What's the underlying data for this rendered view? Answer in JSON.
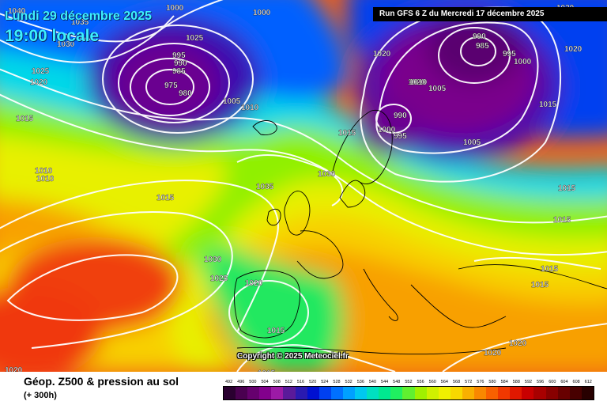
{
  "header": {
    "date_line": "Lundi 29 décembre 2025",
    "time_line": "19:00 locale",
    "run_label": "Run GFS 6 Z du Mercredi 17 décembre 2025"
  },
  "map": {
    "copyright": "Copyright © 2025 Meteociel.fr",
    "pressure_labels": [
      {
        "t": "1040"
      },
      {
        "t": "1035"
      },
      {
        "t": "1030"
      },
      {
        "t": "1025"
      },
      {
        "t": "1020"
      },
      {
        "t": "1000"
      },
      {
        "t": "995"
      },
      {
        "t": "990"
      },
      {
        "t": "985"
      },
      {
        "t": "975"
      },
      {
        "t": "980"
      },
      {
        "t": "1005"
      },
      {
        "t": "1010"
      },
      {
        "t": "1025"
      },
      {
        "t": "1000"
      },
      {
        "t": "1010"
      },
      {
        "t": "1010"
      },
      {
        "t": "1015"
      },
      {
        "t": "1035"
      },
      {
        "t": "1030"
      },
      {
        "t": "1015"
      },
      {
        "t": "1030"
      },
      {
        "t": "1025"
      },
      {
        "t": "1020"
      },
      {
        "t": "1015"
      },
      {
        "t": "1015"
      },
      {
        "t": "1020"
      },
      {
        "t": "1020"
      },
      {
        "t": "1020"
      },
      {
        "t": "1010"
      },
      {
        "t": "1005"
      },
      {
        "t": "990"
      },
      {
        "t": "985"
      },
      {
        "t": "995"
      },
      {
        "t": "1000"
      },
      {
        "t": "990"
      },
      {
        "t": "1000"
      },
      {
        "t": "995"
      },
      {
        "t": "1005"
      },
      {
        "t": "1020"
      },
      {
        "t": "1015"
      },
      {
        "t": "1030"
      },
      {
        "t": "1015"
      },
      {
        "t": "1015"
      },
      {
        "t": "1015"
      },
      {
        "t": "1015"
      },
      {
        "t": "1020"
      },
      {
        "t": "1020"
      },
      {
        "t": "1020"
      },
      {
        "t": "1015"
      }
    ]
  },
  "footer": {
    "product_title": "Géop. Z500 & pression au sol",
    "lead_time": "(+ 300h)"
  },
  "legend": {
    "values": [
      "492",
      "496",
      "500",
      "504",
      "508",
      "512",
      "516",
      "520",
      "524",
      "528",
      "532",
      "536",
      "540",
      "544",
      "548",
      "552",
      "556",
      "560",
      "564",
      "568",
      "572",
      "576",
      "580",
      "584",
      "588",
      "592",
      "596",
      "600",
      "604",
      "608",
      "612"
    ],
    "colors": [
      "#2a0030",
      "#4a0050",
      "#66006e",
      "#82008c",
      "#9c1aa6",
      "#5a1a9a",
      "#2a1ab0",
      "#0010d0",
      "#0040f0",
      "#0070ff",
      "#00a0ff",
      "#00c8f0",
      "#00e0c0",
      "#00e890",
      "#20f060",
      "#60f030",
      "#a0f000",
      "#d0f000",
      "#f0f000",
      "#f8d800",
      "#f8b000",
      "#f88800",
      "#f86000",
      "#f03800",
      "#e01800",
      "#c80000",
      "#a80000",
      "#880000",
      "#680000",
      "#480000",
      "#280000"
    ]
  }
}
